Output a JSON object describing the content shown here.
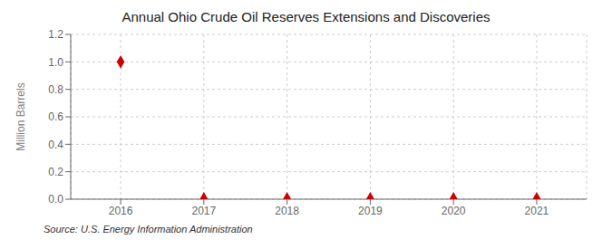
{
  "chart_data": {
    "type": "scatter",
    "title": "Annual Ohio Crude Oil Reserves Extensions and Discoveries",
    "y_label": "Million Barrels",
    "annotations": [
      "Source: U.S. Energy Information Administration"
    ],
    "x": [
      2016,
      2017,
      2018,
      2019,
      2020,
      2021
    ],
    "values": [
      1.0,
      0.003,
      0.003,
      0.003,
      0.003,
      0.003
    ],
    "color": "#cc0000",
    "marker": "diamond",
    "xlim": [
      2015.4,
      2021.6
    ],
    "xticks": [
      2016,
      2017,
      2018,
      2019,
      2020,
      2021
    ],
    "ylim": [
      0.0,
      1.2
    ],
    "yticks": [
      {
        "value": 0.0,
        "label": "0.0"
      },
      0.2,
      0.4,
      0.6,
      0.8,
      {
        "value": 1.0,
        "label": "1.0"
      },
      1.2
    ],
    "grid": true
  }
}
